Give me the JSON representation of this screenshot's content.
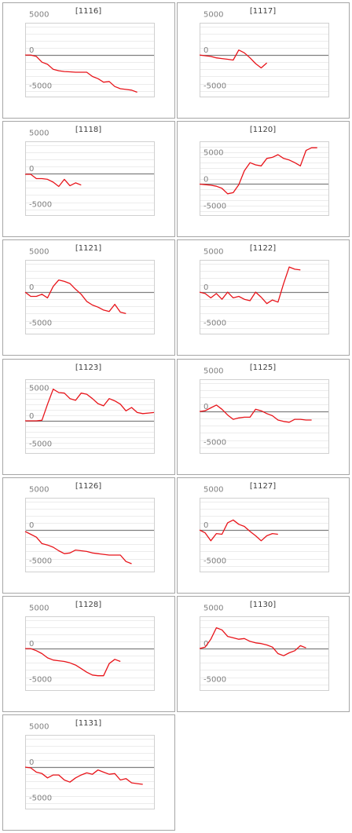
{
  "colors": {
    "line": "#e8141a",
    "panel_border": "#a6a6a6",
    "plot_border": "#d0d0d0",
    "gridline": "#ececec",
    "zero_line": "#7f7f7f",
    "text": "#404040",
    "tick_text": "#808080"
  },
  "chart_data": [
    {
      "type": "line",
      "title": "[1116]",
      "ylim": [
        -5800,
        4500
      ],
      "y_ticks": [
        "5000",
        "0",
        "-5000"
      ],
      "x": [
        0,
        1,
        2,
        3,
        4,
        5,
        6,
        7,
        8,
        9,
        10,
        11,
        12,
        13,
        14,
        15,
        16,
        17,
        18,
        19,
        20,
        21,
        22,
        23
      ],
      "y": [
        0,
        0,
        -200,
        -1000,
        -1300,
        -2000,
        -2200,
        -2300,
        -2350,
        -2400,
        -2400,
        -2400,
        -3000,
        -3300,
        -3800,
        -3700,
        -4400,
        -4700,
        -4800,
        -4900,
        -5200,
        null,
        null,
        null
      ]
    },
    {
      "type": "line",
      "title": "[1117]",
      "ylim": [
        -5800,
        4500
      ],
      "y_ticks": [
        "5000",
        "0",
        "-5000"
      ],
      "x": [
        0,
        1,
        2,
        3,
        4,
        5,
        6,
        7,
        8,
        9,
        10,
        11,
        12,
        13,
        14,
        15,
        16,
        17,
        18,
        19,
        20,
        21,
        22,
        23
      ],
      "y": [
        0,
        -100,
        -200,
        -400,
        -500,
        -600,
        -700,
        700,
        300,
        -400,
        -1200,
        -1800,
        -1100,
        null,
        null,
        null,
        null,
        null,
        null,
        null,
        null,
        null,
        null,
        null
      ]
    },
    {
      "type": "line",
      "title": "[1118]",
      "ylim": [
        -5800,
        4500
      ],
      "y_ticks": [
        "5000",
        "0",
        "-5000"
      ],
      "x": [
        0,
        1,
        2,
        3,
        4,
        5,
        6,
        7,
        8,
        9,
        10,
        11,
        12,
        13,
        14,
        15,
        16,
        17,
        18,
        19,
        20,
        21,
        22,
        23
      ],
      "y": [
        -100,
        -100,
        -700,
        -700,
        -800,
        -1200,
        -1800,
        -800,
        -1700,
        -1300,
        -1600,
        null,
        null,
        null,
        null,
        null,
        null,
        null,
        null,
        null,
        null,
        null,
        null,
        null
      ]
    },
    {
      "type": "line",
      "title": "[1120]",
      "ylim": [
        -5800,
        8000
      ],
      "y_ticks": [
        "5000",
        "0",
        "-5000"
      ],
      "x": [
        0,
        1,
        2,
        3,
        4,
        5,
        6,
        7,
        8,
        9,
        10,
        11,
        12,
        13,
        14,
        15,
        16,
        17,
        18,
        19,
        20,
        21,
        22,
        23
      ],
      "y": [
        0,
        -100,
        -200,
        -400,
        -800,
        -1800,
        -1600,
        -100,
        2500,
        4000,
        3600,
        3400,
        4800,
        5000,
        5500,
        4800,
        4500,
        4000,
        3400,
        6300,
        6800,
        6800,
        null,
        null
      ]
    },
    {
      "type": "line",
      "title": "[1121]",
      "ylim": [
        -5800,
        4500
      ],
      "y_ticks": [
        "5000",
        "0",
        "-5000"
      ],
      "x": [
        0,
        1,
        2,
        3,
        4,
        5,
        6,
        7,
        8,
        9,
        10,
        11,
        12,
        13,
        14,
        15,
        16,
        17,
        18,
        19,
        20,
        21,
        22,
        23
      ],
      "y": [
        0,
        -600,
        -600,
        -300,
        -800,
        800,
        1700,
        1500,
        1200,
        400,
        -300,
        -1300,
        -1800,
        -2100,
        -2500,
        -2700,
        -1700,
        -2800,
        -3000,
        null,
        null,
        null,
        null,
        null
      ]
    },
    {
      "type": "line",
      "title": "[1122]",
      "ylim": [
        -5800,
        4500
      ],
      "y_ticks": [
        "5000",
        "0",
        "-5000"
      ],
      "x": [
        0,
        1,
        2,
        3,
        4,
        5,
        6,
        7,
        8,
        9,
        10,
        11,
        12,
        13,
        14,
        15,
        16,
        17,
        18,
        19,
        20,
        21,
        22,
        23
      ],
      "y": [
        0,
        -200,
        -800,
        -200,
        -1000,
        0,
        -800,
        -600,
        -1000,
        -1200,
        0,
        -700,
        -1600,
        -1100,
        -1400,
        1200,
        3500,
        3200,
        3100,
        null,
        null,
        null,
        null,
        null
      ]
    },
    {
      "type": "line",
      "title": "[1123]",
      "ylim": [
        -5800,
        7500
      ],
      "y_ticks": [
        "5000",
        "0",
        "-5000"
      ],
      "x": [
        0,
        1,
        2,
        3,
        4,
        5,
        6,
        7,
        8,
        9,
        10,
        11,
        12,
        13,
        14,
        15,
        16,
        17,
        18,
        19,
        20,
        21,
        22,
        23
      ],
      "y": [
        0,
        0,
        0,
        100,
        3000,
        5700,
        5100,
        5000,
        4000,
        3700,
        5000,
        4800,
        4000,
        3100,
        2700,
        4000,
        3600,
        3000,
        1800,
        2400,
        1500,
        1300,
        1400,
        1500
      ]
    },
    {
      "type": "line",
      "title": "[1125]",
      "ylim": [
        -5800,
        4500
      ],
      "y_ticks": [
        "5000",
        "0",
        "-5000"
      ],
      "x": [
        0,
        1,
        2,
        3,
        4,
        5,
        6,
        7,
        8,
        9,
        10,
        11,
        12,
        13,
        14,
        15,
        16,
        17,
        18,
        19,
        20,
        21,
        22,
        23
      ],
      "y": [
        0,
        100,
        500,
        900,
        300,
        -500,
        -1100,
        -900,
        -800,
        -800,
        300,
        100,
        -300,
        -600,
        -1200,
        -1400,
        -1500,
        -1100,
        -1100,
        -1200,
        -1200,
        null,
        null,
        null
      ]
    },
    {
      "type": "line",
      "title": "[1126]",
      "ylim": [
        -5800,
        4500
      ],
      "y_ticks": [
        "5000",
        "0",
        "-5000"
      ],
      "x": [
        0,
        1,
        2,
        3,
        4,
        5,
        6,
        7,
        8,
        9,
        10,
        11,
        12,
        13,
        14,
        15,
        16,
        17,
        18,
        19,
        20,
        21,
        22,
        23
      ],
      "y": [
        -200,
        -600,
        -1000,
        -1900,
        -2100,
        -2400,
        -2900,
        -3300,
        -3200,
        -2800,
        -2900,
        -3000,
        -3200,
        -3300,
        -3400,
        -3500,
        -3500,
        -3500,
        -4400,
        -4700,
        null,
        null,
        null,
        null
      ]
    },
    {
      "type": "line",
      "title": "[1127]",
      "ylim": [
        -5800,
        4500
      ],
      "y_ticks": [
        "5000",
        "0",
        "-5000"
      ],
      "x": [
        0,
        1,
        2,
        3,
        4,
        5,
        6,
        7,
        8,
        9,
        10,
        11,
        12,
        13,
        14,
        15,
        16,
        17,
        18,
        19,
        20,
        21,
        22,
        23
      ],
      "y": [
        0,
        -400,
        -1500,
        -500,
        -600,
        1000,
        1400,
        800,
        500,
        -200,
        -800,
        -1500,
        -800,
        -500,
        -600,
        null,
        null,
        null,
        null,
        null,
        null,
        null,
        null,
        null
      ]
    },
    {
      "type": "line",
      "title": "[1128]",
      "ylim": [
        -5800,
        4500
      ],
      "y_ticks": [
        "5000",
        "0",
        "-5000"
      ],
      "x": [
        0,
        1,
        2,
        3,
        4,
        5,
        6,
        7,
        8,
        9,
        10,
        11,
        12,
        13,
        14,
        15,
        16,
        17,
        18,
        19,
        20,
        21,
        22,
        23
      ],
      "y": [
        0,
        0,
        -300,
        -700,
        -1300,
        -1600,
        -1700,
        -1800,
        -2000,
        -2300,
        -2800,
        -3300,
        -3700,
        -3800,
        -3800,
        -2100,
        -1500,
        -1800,
        null,
        null,
        null,
        null,
        null,
        null
      ]
    },
    {
      "type": "line",
      "title": "[1130]",
      "ylim": [
        -5800,
        4500
      ],
      "y_ticks": [
        "5000",
        "0",
        "-5000"
      ],
      "x": [
        0,
        1,
        2,
        3,
        4,
        5,
        6,
        7,
        8,
        9,
        10,
        11,
        12,
        13,
        14,
        15,
        16,
        17,
        18,
        19,
        20,
        21,
        22,
        23
      ],
      "y": [
        0,
        200,
        1300,
        2900,
        2600,
        1700,
        1500,
        1300,
        1400,
        1000,
        800,
        700,
        500,
        200,
        -700,
        -1000,
        -600,
        -300,
        400,
        100,
        null,
        null,
        null,
        null
      ]
    },
    {
      "type": "line",
      "title": "[1131]",
      "ylim": [
        -5800,
        4500
      ],
      "y_ticks": [
        "5000",
        "0",
        "-5000"
      ],
      "x": [
        0,
        1,
        2,
        3,
        4,
        5,
        6,
        7,
        8,
        9,
        10,
        11,
        12,
        13,
        14,
        15,
        16,
        17,
        18,
        19,
        20,
        21,
        22,
        23
      ],
      "y": [
        0,
        -100,
        -700,
        -900,
        -1500,
        -1100,
        -1100,
        -1800,
        -2100,
        -1500,
        -1100,
        -800,
        -1000,
        -400,
        -700,
        -1000,
        -900,
        -1800,
        -1600,
        -2200,
        -2300,
        -2400,
        null,
        null
      ]
    }
  ]
}
